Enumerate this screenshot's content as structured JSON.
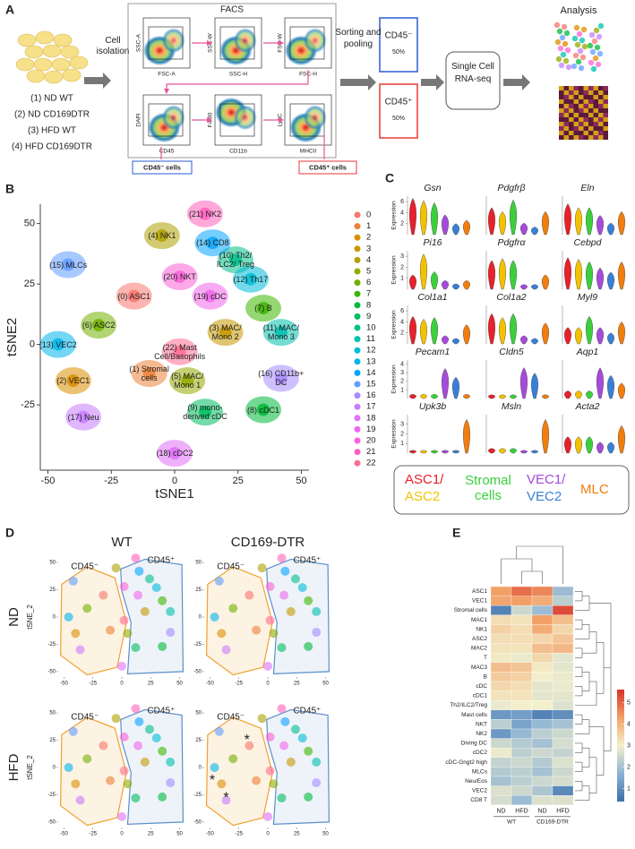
{
  "panel_a": {
    "label": "A",
    "conditions": [
      "(1) ND WT",
      "(2) ND CD169DTR",
      "(3) HFD WT",
      "(4) HFD CD169DTR"
    ],
    "cell_isolation": "Cell isolation",
    "facs": "FACS",
    "plots": [
      {
        "x": "FSC-A",
        "y": "SSC-A"
      },
      {
        "x": "SSC-H",
        "y": "SSC-W"
      },
      {
        "x": "FSC-H",
        "y": "FSC-W"
      },
      {
        "x": "CD45",
        "y": "DAPI"
      },
      {
        "x": "CD11b",
        "y": "F4/80"
      },
      {
        "x": "MHCII",
        "y": "Ly6C"
      }
    ],
    "gate_negative": "CD45⁻ cells",
    "gate_positive": "CD45⁺ cells",
    "sorting": "Sorting and pooling",
    "pools": [
      {
        "label": "CD45⁻",
        "share": "50%",
        "color": "#2a5bd7"
      },
      {
        "label": "CD45⁺",
        "share": "50%",
        "color": "#e53935"
      }
    ],
    "sequencing": "Single Cell RNA-seq",
    "analysis": "Analysis"
  },
  "chart_data": [
    {
      "type": "scatter",
      "label": "B",
      "xlabel": "tSNE1",
      "ylabel": "tSNE2",
      "xlim": [
        -53,
        53
      ],
      "ylim": [
        -52,
        58
      ],
      "xticks": [
        -50,
        -25,
        0,
        25,
        50
      ],
      "yticks": [
        -25,
        0,
        25,
        50
      ],
      "clusters": [
        "0",
        "1",
        "2",
        "3",
        "4",
        "5",
        "6",
        "7",
        "8",
        "9",
        "10",
        "11",
        "12",
        "13",
        "14",
        "15",
        "16",
        "17",
        "18",
        "19",
        "20",
        "21",
        "22"
      ],
      "annotations": [
        "(0) ASC1",
        "(1) Stromal cells",
        "(2) VEC1",
        "(3) MAC/ Mono 2",
        "(4) NK1",
        "(5) MAC/ Mono 1",
        "(6) ASC2",
        "(7) B",
        "(8) cDC1",
        "(9) mono-derived cDC",
        "(10) Th2/ ILC2/ Treg",
        "(11) MAC/ Mono 3",
        "(12) Th17",
        "(13) VEC2",
        "(14) CD8",
        "(15) MLCs",
        "(16) CD11b+ DC",
        "(17) Neu",
        "(18) cDC2",
        "(19) cDC",
        "(20) NKT",
        "(21) NK2",
        "(22) Mast Cell/Basophils"
      ],
      "x": [
        -16,
        -10,
        -40,
        20,
        -5,
        5,
        -30,
        35,
        35,
        12,
        24,
        42,
        30,
        -46,
        15,
        -42,
        42,
        -36,
        0,
        14,
        2,
        12,
        2
      ],
      "y": [
        20,
        -12,
        -15,
        5,
        45,
        -15,
        8,
        15,
        -27,
        -28,
        35,
        5,
        27,
        0,
        42,
        33,
        -14,
        -30,
        -45,
        20,
        28,
        54,
        -3
      ],
      "colors": [
        "#F8766D",
        "#EC8239",
        "#DB8E00",
        "#C79800",
        "#AFA100",
        "#94AA00",
        "#72B000",
        "#3DB600",
        "#00BA38",
        "#00BD5F",
        "#00C08B",
        "#00C0AF",
        "#00BCD8",
        "#00B6EB",
        "#06A4FF",
        "#619CFF",
        "#A58AFF",
        "#C77CFF",
        "#DF70F8",
        "#F066EA",
        "#FB61D7",
        "#FF62BC",
        "#FF6C91"
      ]
    },
    {
      "type": "violin",
      "label": "C",
      "ylabel": "Expression",
      "groups": [
        {
          "name": "ASC1/",
          "color": "#e8202a"
        },
        {
          "name": "ASC2",
          "color": "#f2c200"
        },
        {
          "name": "Stromal cells",
          "color": "#3ccf3c"
        },
        {
          "name": "VEC1/",
          "color": "#a64ad9"
        },
        {
          "name": "VEC2",
          "color": "#3a7fd6"
        },
        {
          "name": "MLC",
          "color": "#f07d0d"
        }
      ],
      "genes": [
        {
          "name": "Gsn",
          "ylim": [
            0,
            7
          ],
          "yticks": [
            2,
            4,
            6
          ],
          "values": [
            6.6,
            6.2,
            5.8,
            3.6,
            2.0,
            2.6
          ]
        },
        {
          "name": "Pdgfrβ",
          "ylim": [
            0,
            5
          ],
          "values": [
            3.5,
            3.0,
            4.5,
            1.5,
            1.0,
            3.0
          ]
        },
        {
          "name": "Eln",
          "ylim": [
            0,
            5
          ],
          "values": [
            4.0,
            3.5,
            3.5,
            2.5,
            1.5,
            3.0
          ]
        },
        {
          "name": "Pi16",
          "ylim": [
            0,
            3.5
          ],
          "yticks": [
            1,
            2,
            3
          ],
          "values": [
            1.3,
            3.2,
            1.6,
            0.8,
            0.5,
            0.8
          ]
        },
        {
          "name": "Pdgfrα",
          "ylim": [
            0,
            4
          ],
          "values": [
            3.0,
            3.2,
            3.0,
            0.5,
            0.5,
            1.5
          ]
        },
        {
          "name": "Cebpd",
          "ylim": [
            0,
            4.5
          ],
          "values": [
            3.7,
            3.5,
            3.2,
            2.5,
            2.0,
            3.2
          ]
        },
        {
          "name": "Col1a1",
          "ylim": [
            0,
            7
          ],
          "yticks": [
            2,
            4,
            6
          ],
          "values": [
            5.0,
            4.5,
            4.8,
            1.5,
            1.0,
            3.5
          ]
        },
        {
          "name": "Col1a2",
          "ylim": [
            0,
            7
          ],
          "values": [
            5.5,
            4.8,
            5.5,
            1.5,
            1.0,
            3.8
          ]
        },
        {
          "name": "Myl9",
          "ylim": [
            0,
            3.5
          ],
          "values": [
            1.5,
            1.5,
            2.5,
            1.5,
            1.0,
            2.0
          ]
        },
        {
          "name": "Pecam1",
          "ylim": [
            0,
            4.5
          ],
          "yticks": [
            1,
            2,
            3,
            4
          ],
          "values": [
            0.5,
            0.5,
            0.5,
            3.5,
            2.5,
            0.5
          ]
        },
        {
          "name": "Cldn5",
          "ylim": [
            0,
            5
          ],
          "values": [
            0.5,
            0.5,
            0.5,
            4.0,
            3.3,
            0.5
          ]
        },
        {
          "name": "Aqp1",
          "ylim": [
            0,
            5
          ],
          "values": [
            1.0,
            1.0,
            1.0,
            4.0,
            3.0,
            2.0
          ]
        },
        {
          "name": "Upk3b",
          "ylim": [
            0,
            4
          ],
          "yticks": [
            1,
            2,
            3
          ],
          "values": [
            0.3,
            0.3,
            0.3,
            0.3,
            0.3,
            3.5
          ]
        },
        {
          "name": "Msln",
          "ylim": [
            0,
            4
          ],
          "values": [
            0.5,
            0.5,
            0.5,
            0.3,
            0.3,
            3.5
          ]
        },
        {
          "name": "Acta2",
          "ylim": [
            0,
            3.5
          ],
          "values": [
            1.5,
            1.5,
            1.5,
            1.0,
            1.0,
            2.5
          ]
        }
      ]
    },
    {
      "type": "tsne-panels",
      "label": "D",
      "columns": [
        "WT",
        "CD169-DTR"
      ],
      "rows": [
        "ND",
        "HFD"
      ],
      "ylabel": "tSNE_2",
      "xlim": [
        -55,
        55
      ],
      "ylim": [
        -55,
        55
      ],
      "xticks": [
        -50,
        -25,
        0,
        25,
        50
      ],
      "yticks": [
        -50,
        -25,
        0,
        25,
        50
      ],
      "gates": [
        {
          "name": "CD45⁻",
          "color": "#f0a030"
        },
        {
          "name": "CD45⁺",
          "color": "#5b8fc9"
        }
      ],
      "highlights": [
        "*",
        "*",
        "*"
      ]
    },
    {
      "type": "heatmap",
      "label": "E",
      "rows": [
        "ASC1",
        "VEC1",
        "Stromal cells",
        "MAC1",
        "NK1",
        "ASC2",
        "MAC2",
        "T",
        "MAC3",
        "B",
        "cDC",
        "cDC1",
        "Th2/ILC2/Treg",
        "Mast cells",
        "NKT",
        "NK2",
        "Diving DC",
        "cDC2",
        "cDC-Gngt2 high",
        "MLCs",
        "Neu/Eos",
        "VEC2",
        "CD8 T"
      ],
      "columns": [
        "ND",
        "HFD",
        "ND",
        "HFD"
      ],
      "column_groups": [
        "WT",
        "CD169-DTR"
      ],
      "values": [
        [
          4.3,
          4.9,
          4.6,
          1.9
        ],
        [
          4.2,
          4.3,
          4.1,
          2.3
        ],
        [
          0.8,
          2.5,
          1.9,
          5.3
        ],
        [
          3.3,
          3.2,
          4.3,
          3.8
        ],
        [
          3.5,
          3.3,
          4.1,
          3.4
        ],
        [
          3.3,
          3.3,
          3.4,
          3.7
        ],
        [
          3.2,
          3.2,
          3.8,
          3.9
        ],
        [
          3.1,
          2.9,
          3.4,
          2.8
        ],
        [
          3.8,
          3.7,
          3.1,
          2.8
        ],
        [
          3.6,
          3.5,
          3.0,
          2.9
        ],
        [
          3.4,
          3.3,
          2.8,
          2.9
        ],
        [
          3.2,
          3.2,
          2.8,
          2.8
        ],
        [
          2.9,
          3.0,
          3.0,
          2.7
        ],
        [
          1.2,
          1.3,
          0.8,
          1.0
        ],
        [
          2.3,
          1.4,
          1.8,
          2.0
        ],
        [
          1.2,
          1.8,
          2.3,
          2.5
        ],
        [
          2.5,
          2.2,
          2.0,
          2.6
        ],
        [
          2.9,
          2.3,
          2.5,
          2.4
        ],
        [
          2.4,
          2.5,
          2.2,
          2.7
        ],
        [
          2.2,
          2.3,
          2.0,
          2.5
        ],
        [
          2.0,
          2.3,
          2.5,
          2.6
        ],
        [
          2.7,
          2.5,
          2.1,
          0.9
        ],
        [
          2.6,
          1.9,
          2.7,
          2.7
        ]
      ],
      "zlim": [
        0.4,
        5.6
      ],
      "zticks": [
        1,
        2,
        3,
        4,
        5
      ],
      "colormap": [
        "#3b6ea8",
        "#8db3d4",
        "#f3efcb",
        "#f3a067",
        "#d6332a"
      ]
    }
  ]
}
